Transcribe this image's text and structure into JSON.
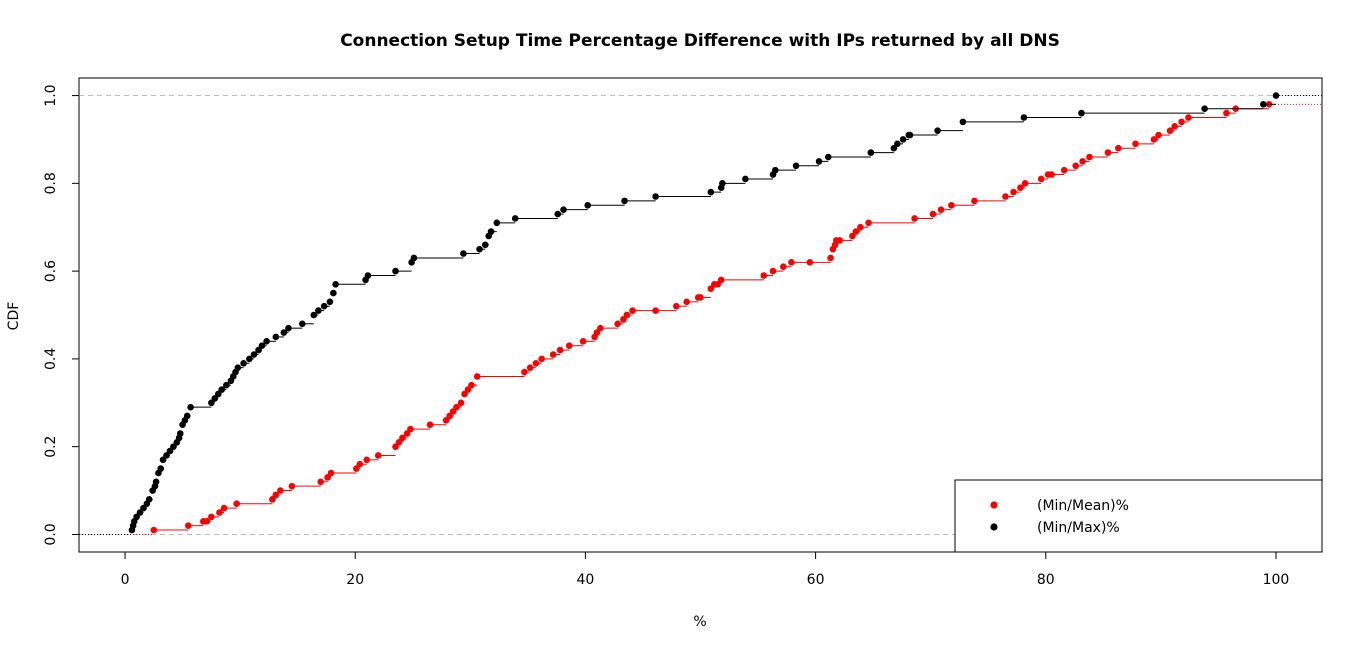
{
  "chart_data": {
    "type": "line",
    "title": "Connection Setup Time Percentage Difference with IPs returned by all DNS",
    "xlabel": "%",
    "ylabel": "CDF",
    "xlim": [
      -4,
      104
    ],
    "ylim": [
      -0.04,
      1.04
    ],
    "x_ticks": [
      "0",
      "20",
      "40",
      "60",
      "80",
      "100"
    ],
    "y_ticks": [
      "0.0",
      "0.2",
      "0.4",
      "0.6",
      "0.8",
      "1.0"
    ],
    "reference_lines_y": [
      0,
      1
    ],
    "grid": false,
    "legend": "bottom-right",
    "step": true,
    "series": [
      {
        "name": "(Min/Mean)%",
        "color": "#ff0000",
        "x": [
          2.5,
          5.5,
          6.8,
          7.1,
          7.5,
          8.2,
          8.6,
          9.7,
          12.8,
          13.1,
          13.5,
          14.5,
          17,
          17.6,
          17.9,
          20.1,
          20.4,
          21,
          22,
          23.5,
          23.8,
          24.1,
          24.5,
          24.8,
          26.5,
          27.9,
          28.2,
          28.5,
          28.8,
          29.2,
          29.5,
          29.8,
          30.1,
          30.6,
          34.7,
          35.2,
          35.7,
          36.2,
          37.2,
          37.8,
          38.6,
          39.8,
          40.8,
          41,
          41.3,
          42.8,
          43.3,
          43.6,
          44.1,
          46.1,
          47.9,
          48.8,
          49.8,
          50,
          50.9,
          51.2,
          51.5,
          51.8,
          55.5,
          56.3,
          57.2,
          57.9,
          59.5,
          61.3,
          61.5,
          61.7,
          61.8,
          62.1,
          63.2,
          63.5,
          63.9,
          64.6,
          68.6,
          70.2,
          70.9,
          71.8,
          73.8,
          76.5,
          77.2,
          77.8,
          78.2,
          79.6,
          80.2,
          80.5,
          81.6,
          82.6,
          83.2,
          83.8,
          85.4,
          86.3,
          87.8,
          89.4,
          89.8,
          90.8,
          91.2,
          91.8,
          92.4,
          95.7,
          96.5,
          99.4
        ],
        "values": [
          0.01,
          0.02,
          0.03,
          0.03,
          0.04,
          0.05,
          0.06,
          0.07,
          0.08,
          0.09,
          0.1,
          0.11,
          0.12,
          0.13,
          0.14,
          0.15,
          0.16,
          0.17,
          0.18,
          0.2,
          0.21,
          0.22,
          0.23,
          0.24,
          0.25,
          0.26,
          0.27,
          0.28,
          0.29,
          0.3,
          0.32,
          0.33,
          0.34,
          0.36,
          0.37,
          0.38,
          0.39,
          0.4,
          0.41,
          0.42,
          0.43,
          0.44,
          0.45,
          0.46,
          0.47,
          0.48,
          0.49,
          0.5,
          0.51,
          0.51,
          0.52,
          0.53,
          0.54,
          0.54,
          0.56,
          0.57,
          0.57,
          0.58,
          0.59,
          0.6,
          0.61,
          0.62,
          0.62,
          0.63,
          0.65,
          0.66,
          0.67,
          0.67,
          0.68,
          0.69,
          0.7,
          0.71,
          0.72,
          0.73,
          0.74,
          0.75,
          0.76,
          0.77,
          0.78,
          0.79,
          0.8,
          0.81,
          0.82,
          0.82,
          0.83,
          0.84,
          0.85,
          0.86,
          0.87,
          0.88,
          0.89,
          0.9,
          0.91,
          0.92,
          0.93,
          0.94,
          0.95,
          0.96,
          0.97,
          0.98
        ]
      },
      {
        "name": "(Min/Max)%",
        "color": "#000000",
        "x": [
          0.6,
          0.7,
          0.8,
          1.0,
          1.3,
          1.6,
          1.9,
          2.1,
          2.4,
          2.6,
          2.7,
          2.9,
          3.1,
          3.3,
          3.6,
          3.9,
          4.2,
          4.5,
          4.7,
          4.8,
          5.0,
          5.2,
          5.4,
          5.7,
          7.5,
          7.8,
          8.1,
          8.4,
          8.8,
          9.2,
          9.4,
          9.6,
          9.8,
          10.3,
          10.8,
          11.2,
          11.6,
          11.9,
          12.3,
          13.1,
          13.8,
          14.2,
          15.4,
          16.4,
          16.8,
          17.3,
          17.8,
          18.1,
          18.3,
          20.9,
          21.1,
          23.5,
          24.9,
          25.1,
          29.4,
          30.8,
          31.3,
          31.6,
          31.8,
          32.3,
          33.9,
          37.6,
          38.1,
          40.2,
          43.4,
          46.1,
          50.9,
          51.8,
          51.9,
          53.9,
          56.3,
          56.5,
          58.3,
          60.3,
          61.1,
          64.8,
          66.8,
          67.1,
          67.6,
          68.1,
          68.2,
          70.6,
          72.8,
          78.1,
          83.1,
          93.8,
          98.9,
          100
        ],
        "values": [
          0.01,
          0.02,
          0.03,
          0.04,
          0.05,
          0.06,
          0.07,
          0.08,
          0.1,
          0.11,
          0.12,
          0.14,
          0.15,
          0.17,
          0.18,
          0.19,
          0.2,
          0.21,
          0.22,
          0.23,
          0.25,
          0.26,
          0.27,
          0.29,
          0.3,
          0.31,
          0.32,
          0.33,
          0.34,
          0.35,
          0.36,
          0.37,
          0.38,
          0.39,
          0.4,
          0.41,
          0.42,
          0.43,
          0.44,
          0.45,
          0.46,
          0.47,
          0.48,
          0.5,
          0.51,
          0.52,
          0.53,
          0.55,
          0.57,
          0.58,
          0.59,
          0.6,
          0.62,
          0.63,
          0.64,
          0.65,
          0.66,
          0.68,
          0.69,
          0.71,
          0.72,
          0.73,
          0.74,
          0.75,
          0.76,
          0.77,
          0.78,
          0.79,
          0.8,
          0.81,
          0.82,
          0.83,
          0.84,
          0.85,
          0.86,
          0.87,
          0.88,
          0.89,
          0.9,
          0.91,
          0.91,
          0.92,
          0.94,
          0.95,
          0.96,
          0.97,
          0.98,
          1.0
        ]
      }
    ]
  }
}
